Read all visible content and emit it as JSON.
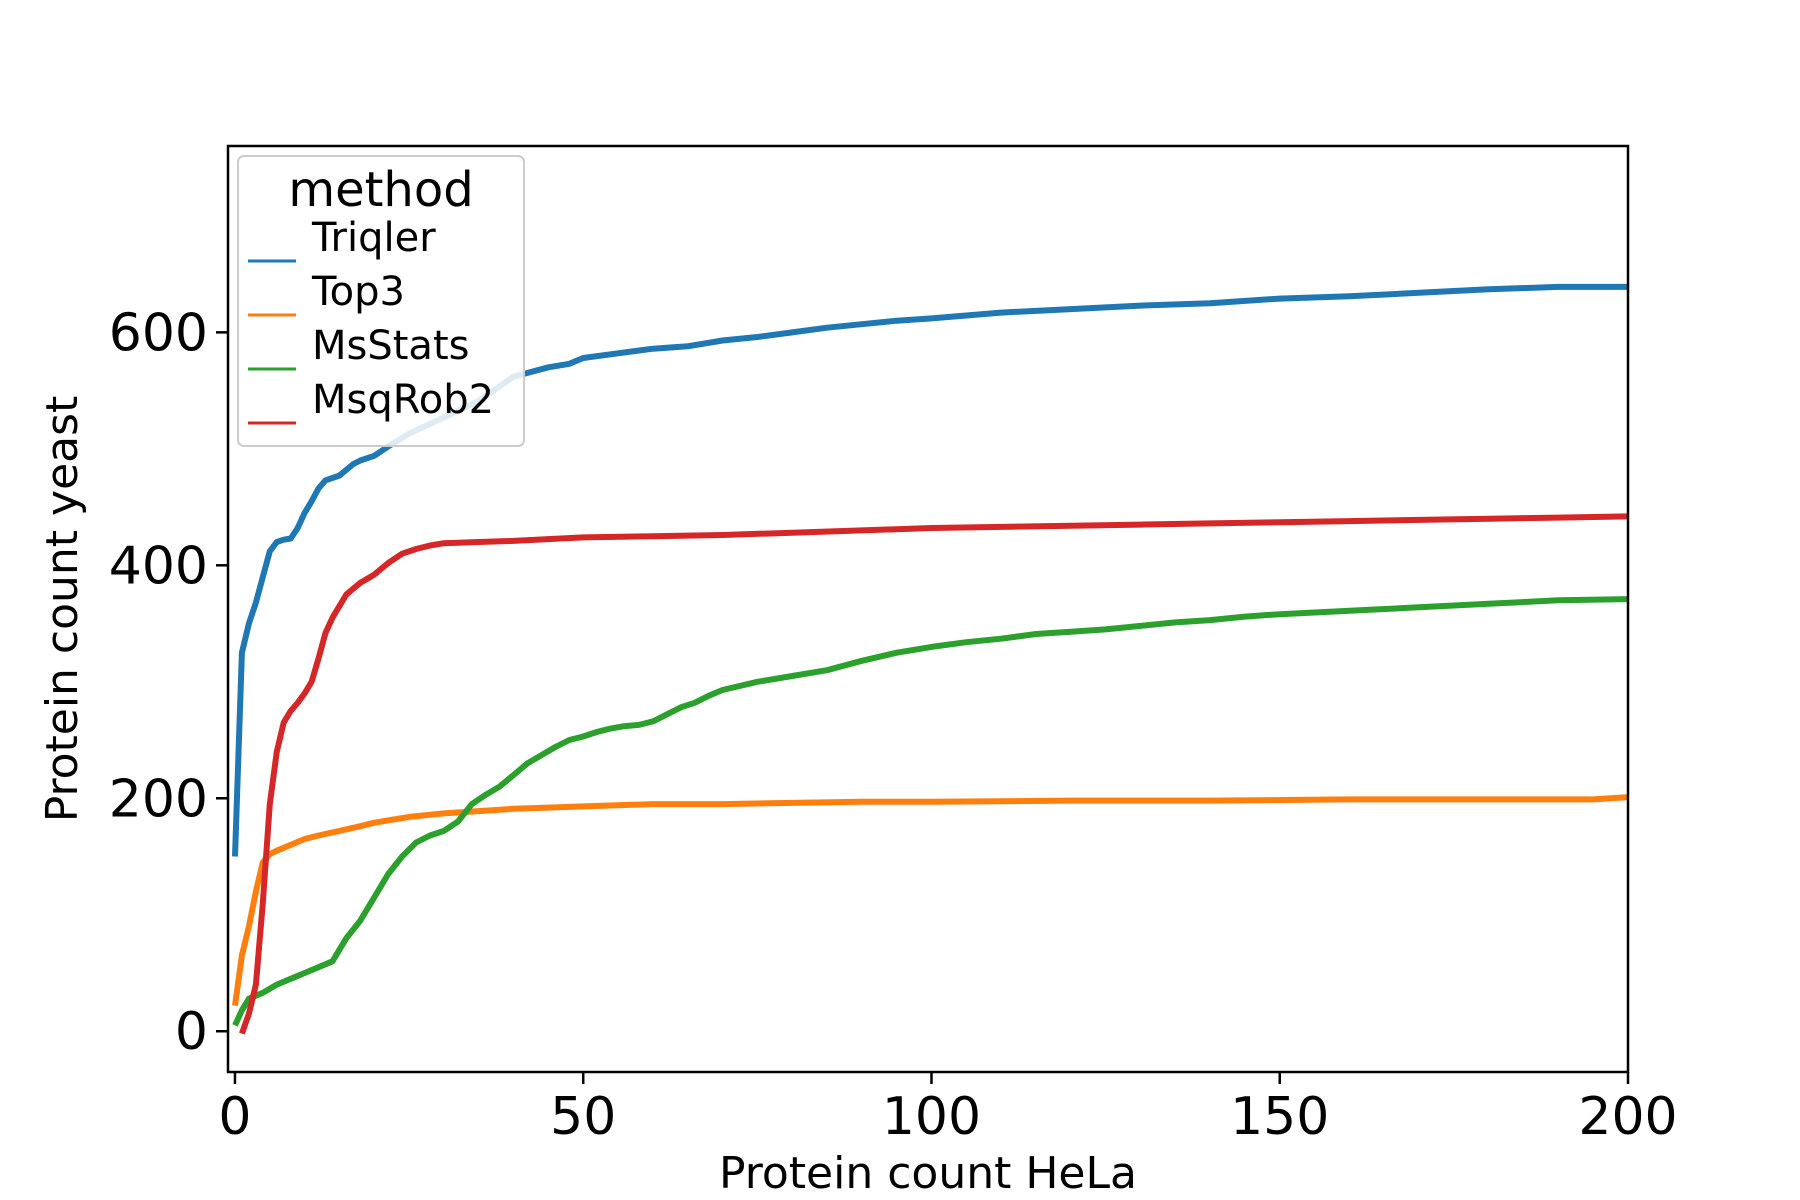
{
  "chart_data": {
    "type": "line",
    "title": "",
    "xlabel": "Protein count HeLa",
    "ylabel": "Protein count yeast",
    "xlim": [
      -1,
      200
    ],
    "ylim": [
      -35,
      760
    ],
    "xticks": [
      0,
      50,
      100,
      150,
      200
    ],
    "yticks": [
      0,
      200,
      400,
      600
    ],
    "grid": false,
    "legend": {
      "title": "method",
      "placement": "top-left"
    },
    "series": [
      {
        "name": "Triqler",
        "color": "#1f77b4",
        "x": [
          0,
          1,
          2,
          3,
          4,
          5,
          6,
          7,
          8,
          9,
          10,
          11,
          12,
          13,
          15,
          17,
          18,
          20,
          22,
          25,
          30,
          35,
          40,
          45,
          48,
          50,
          55,
          60,
          65,
          70,
          75,
          80,
          85,
          90,
          95,
          100,
          110,
          120,
          130,
          140,
          150,
          160,
          170,
          180,
          190,
          200
        ],
        "y": [
          150,
          325,
          350,
          368,
          390,
          412,
          420,
          422,
          423,
          432,
          445,
          455,
          466,
          473,
          477,
          487,
          490,
          494,
          502,
          513,
          527,
          541,
          562,
          570,
          573,
          578,
          582,
          586,
          588,
          593,
          596,
          600,
          604,
          607,
          610,
          612,
          617,
          620,
          623,
          625,
          629,
          631,
          634,
          637,
          639,
          639
        ]
      },
      {
        "name": "Top3",
        "color": "#ff7f0e",
        "x": [
          0,
          1,
          2,
          3,
          4,
          5,
          6,
          8,
          10,
          12,
          15,
          18,
          20,
          25,
          30,
          35,
          40,
          45,
          50,
          55,
          60,
          70,
          80,
          90,
          100,
          120,
          140,
          160,
          180,
          195,
          200
        ],
        "y": [
          22,
          65,
          90,
          120,
          145,
          152,
          155,
          160,
          165,
          168,
          172,
          176,
          179,
          184,
          187,
          189,
          191,
          192,
          193,
          194,
          195,
          195,
          196,
          197,
          197,
          198,
          198,
          199,
          199,
          199,
          201
        ]
      },
      {
        "name": "MsStats",
        "color": "#2ca02c",
        "x": [
          0,
          1,
          2,
          4,
          6,
          8,
          10,
          12,
          14,
          16,
          18,
          20,
          22,
          24,
          26,
          28,
          30,
          32,
          34,
          36,
          38,
          40,
          42,
          44,
          46,
          48,
          50,
          52,
          54,
          56,
          58,
          60,
          62,
          64,
          66,
          68,
          70,
          75,
          80,
          85,
          90,
          95,
          100,
          105,
          110,
          115,
          120,
          125,
          130,
          135,
          140,
          145,
          150,
          160,
          170,
          180,
          190,
          200
        ],
        "y": [
          5,
          18,
          28,
          33,
          40,
          45,
          50,
          55,
          60,
          80,
          95,
          115,
          135,
          150,
          162,
          168,
          172,
          180,
          195,
          203,
          210,
          220,
          230,
          237,
          244,
          250,
          253,
          257,
          260,
          262,
          263,
          266,
          272,
          278,
          282,
          288,
          293,
          300,
          305,
          310,
          318,
          325,
          330,
          334,
          337,
          341,
          343,
          345,
          348,
          351,
          353,
          356,
          358,
          361,
          364,
          367,
          370,
          371
        ]
      },
      {
        "name": "MsqRob2",
        "color": "#d62728",
        "x": [
          1,
          2,
          3,
          4,
          5,
          6,
          7,
          8,
          9,
          10,
          11,
          12,
          13,
          14,
          16,
          18,
          20,
          22,
          24,
          26,
          28,
          30,
          35,
          40,
          50,
          60,
          70,
          80,
          90,
          100,
          110,
          120,
          130,
          140,
          150,
          160,
          170,
          180,
          190,
          200
        ],
        "y": [
          -2,
          15,
          40,
          110,
          195,
          240,
          265,
          275,
          282,
          290,
          300,
          320,
          342,
          355,
          375,
          385,
          392,
          402,
          410,
          414,
          417,
          419,
          420,
          421,
          424,
          425,
          426,
          428,
          430,
          432,
          433,
          434,
          435,
          436,
          437,
          438,
          439,
          440,
          441,
          442
        ]
      }
    ]
  }
}
